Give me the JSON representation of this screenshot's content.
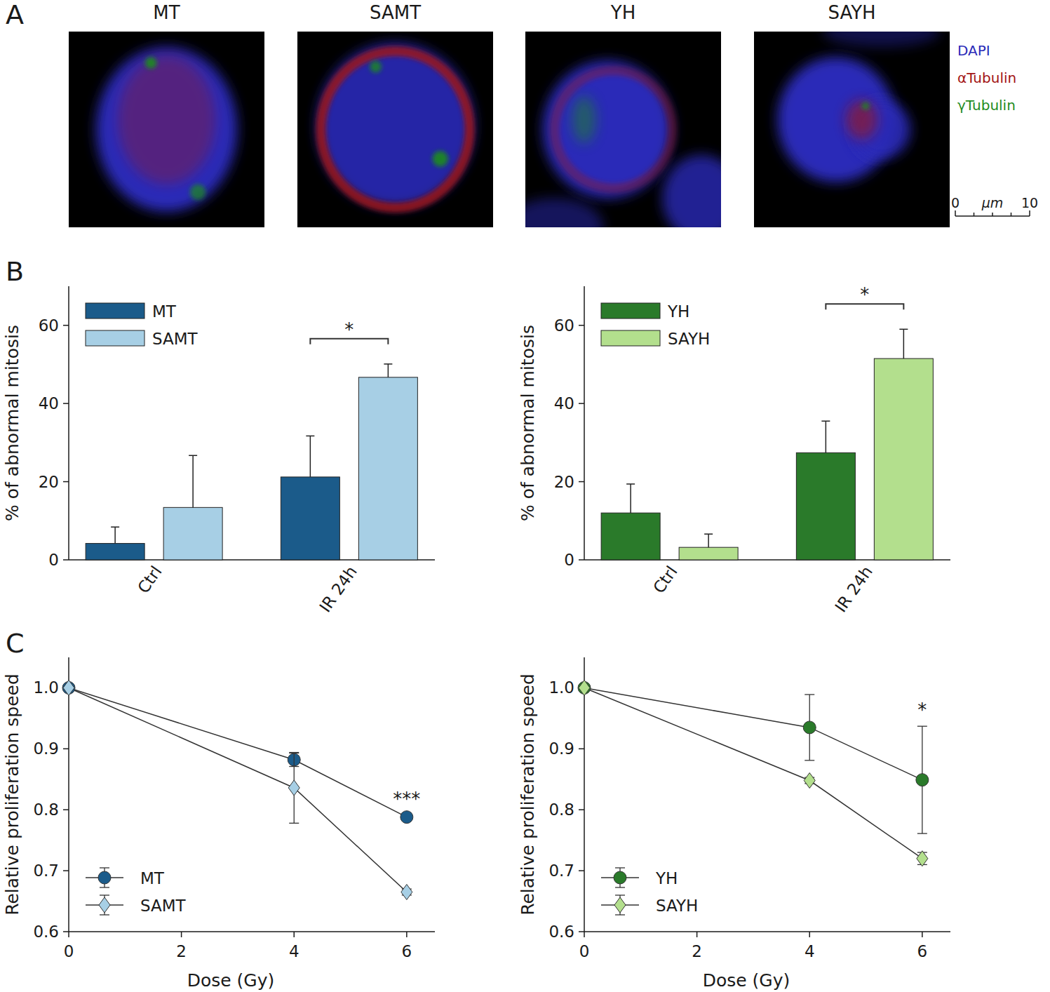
{
  "panel_a": {
    "letter": "A",
    "images": [
      "MT",
      "SAMT",
      "YH",
      "SAYH"
    ],
    "channels": [
      {
        "name": "DAPI",
        "color": "#2b2bb8"
      },
      {
        "name": "αTubulin",
        "color": "#a31515"
      },
      {
        "name": "γTubulin",
        "color": "#1e8c1e"
      }
    ],
    "scale_bar": {
      "ticks": [
        0,
        10
      ],
      "unit": "μm"
    }
  },
  "chart_data": [
    {
      "type": "bar",
      "panel": "B",
      "y_label": "% of abnormal mitosis",
      "categories": [
        "Ctrl",
        "IR 24h"
      ],
      "series": [
        {
          "name": "MT",
          "color": "#1b5b8a",
          "values": [
            4.2,
            21.2
          ],
          "errors": [
            4.2,
            10.5
          ]
        },
        {
          "name": "SAMT",
          "color": "#a7cfe5",
          "values": [
            13.4,
            46.7
          ],
          "errors": [
            13.3,
            3.4
          ]
        }
      ],
      "ylim": [
        0,
        70
      ],
      "yticks": [
        0,
        20,
        40,
        60
      ],
      "legend": "upper left",
      "annotations": [
        {
          "text": "*",
          "category": "IR 24h"
        }
      ]
    },
    {
      "type": "bar",
      "y_label": "% of abnormal mitosis",
      "categories": [
        "Ctrl",
        "IR 24h"
      ],
      "series": [
        {
          "name": "YH",
          "color": "#2a7a2a",
          "values": [
            12.0,
            27.4
          ],
          "errors": [
            7.4,
            8.1
          ]
        },
        {
          "name": "SAYH",
          "color": "#b3df8d",
          "values": [
            3.2,
            51.5
          ],
          "errors": [
            3.4,
            7.5
          ]
        }
      ],
      "ylim": [
        0,
        70
      ],
      "yticks": [
        0,
        20,
        40,
        60
      ],
      "legend": "upper left",
      "annotations": [
        {
          "text": "*",
          "category": "IR 24h"
        }
      ]
    },
    {
      "type": "line",
      "panel": "C",
      "y_label": "Relative proliferation speed",
      "x_label": "Dose (Gy)",
      "x": [
        0,
        4,
        6
      ],
      "series": [
        {
          "name": "MT",
          "color": "#1b5b8a",
          "marker": "circle",
          "values": [
            1,
            0.882,
            0.788
          ],
          "errors": [
            0,
            0.011,
            0.003
          ]
        },
        {
          "name": "SAMT",
          "color": "#a7cfe5",
          "marker": "diamond",
          "values": [
            1,
            0.836,
            0.665
          ],
          "errors": [
            0,
            0.058,
            0.005
          ]
        }
      ],
      "xlim": [
        0,
        6.5
      ],
      "xticks": [
        0,
        2,
        4,
        6
      ],
      "ylim": [
        0.6,
        1.05
      ],
      "yticks": [
        0.6,
        0.7,
        0.8,
        0.9,
        {
          "value": 1,
          "label": "1.0"
        }
      ],
      "legend": "lower left",
      "annotations": [
        {
          "text": "***",
          "x": 6
        }
      ]
    },
    {
      "type": "line",
      "y_label": "Relative proliferation speed",
      "x_label": "Dose (Gy)",
      "x": [
        0,
        4,
        6
      ],
      "series": [
        {
          "name": "YH",
          "color": "#2a7a2a",
          "marker": "circle",
          "values": [
            1,
            0.935,
            0.849
          ],
          "errors": [
            0,
            0.054,
            0.088
          ]
        },
        {
          "name": "SAYH",
          "color": "#b3df8d",
          "marker": "diamond",
          "values": [
            1,
            0.848,
            0.72
          ],
          "errors": [
            0,
            0.005,
            0.01
          ]
        }
      ],
      "xlim": [
        0,
        6.5
      ],
      "xticks": [
        0,
        2,
        4,
        6
      ],
      "ylim": [
        0.6,
        1.05
      ],
      "yticks": [
        0.6,
        0.7,
        0.8,
        0.9,
        {
          "value": 1,
          "label": "1.0"
        }
      ],
      "legend": "lower left",
      "annotations": [
        {
          "text": "*",
          "x": 6
        }
      ]
    }
  ]
}
